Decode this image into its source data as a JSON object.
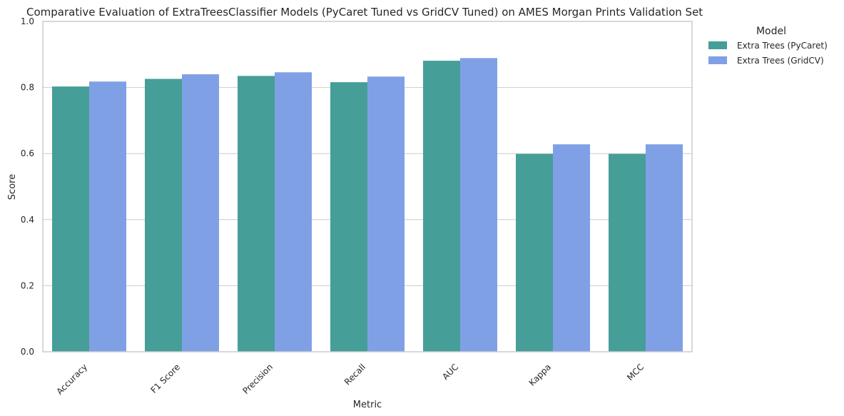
{
  "chart_data": {
    "type": "bar",
    "title": "Comparative Evaluation of ExtraTreesClassifier Models (PyCaret Tuned vs GridCV Tuned) on AMES Morgan Prints Validation Set",
    "xlabel": "Metric",
    "ylabel": "Score",
    "ylim": [
      0,
      1
    ],
    "yticks": [
      "0.0",
      "0.2",
      "0.4",
      "0.6",
      "0.8",
      "1.0"
    ],
    "grid": true,
    "categories": [
      "Accuracy",
      "F1 Score",
      "Precision",
      "Recall",
      "AUC",
      "Kappa",
      "MCC"
    ],
    "series": [
      {
        "name": "Extra Trees (PyCaret)",
        "color": "#469e98",
        "values": [
          0.803,
          0.826,
          0.835,
          0.816,
          0.881,
          0.599,
          0.599
        ]
      },
      {
        "name": "Extra Trees (GridCV)",
        "color": "#80a0e6",
        "values": [
          0.818,
          0.84,
          0.846,
          0.833,
          0.889,
          0.628,
          0.628
        ]
      }
    ],
    "legend": {
      "title": "Model",
      "placement": "outside-top-right"
    }
  }
}
